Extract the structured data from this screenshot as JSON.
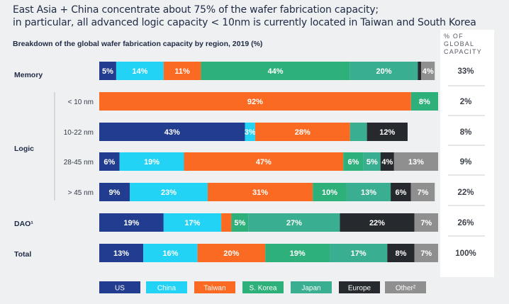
{
  "title": {
    "line1": "East Asia + China concentrate about 75% of the wafer fabrication capacity;",
    "line2": "in particular, all advanced logic capacity < 10nm is currently located in Taiwan and South Korea"
  },
  "subtitle": "Breakdown of the global wafer fabrication capacity by region, 2019 (%)",
  "share_header": "% OF\nGLOBAL\nCAPACITY",
  "colors": {
    "US": "#223d8f",
    "China": "#22d3f5",
    "Taiwan": "#fb6a22",
    "S. Korea": "#2eb07a",
    "Japan": "#3aae90",
    "Europe": "#262a2e",
    "Other²": "#8f8f8f"
  },
  "chart_data": {
    "type": "bar",
    "orientation": "horizontal",
    "stacked": true,
    "xlim": [
      0,
      100
    ],
    "series_names": [
      "US",
      "China",
      "Taiwan",
      "S. Korea",
      "Japan",
      "Europe",
      "Other²"
    ],
    "legend": [
      "US",
      "China",
      "Taiwan",
      "S. Korea",
      "Japan",
      "Europe",
      "Other²"
    ],
    "legend_position": "bottom",
    "rows": [
      {
        "group": "Memory",
        "label": "",
        "values": [
          5,
          14,
          11,
          44,
          20,
          1,
          4
        ],
        "labels": [
          "5%",
          "14%",
          "11%",
          "44%",
          "20%",
          "",
          "4%"
        ],
        "share": "33%"
      },
      {
        "group": "Logic",
        "label": "< 10 nm",
        "values": [
          0,
          0,
          92,
          8,
          0,
          0,
          0
        ],
        "labels": [
          "",
          "",
          "92%",
          "8%",
          "",
          "",
          ""
        ],
        "share": "2%"
      },
      {
        "group": "Logic",
        "label": "10-22 nm",
        "values": [
          43,
          3,
          28,
          0,
          5,
          12,
          0
        ],
        "labels": [
          "43%",
          "3%",
          "28%",
          "",
          "",
          "12%",
          ""
        ],
        "share": "8%"
      },
      {
        "group": "Logic",
        "label": "28-45 nm",
        "values": [
          6,
          19,
          47,
          6,
          5,
          4,
          13
        ],
        "labels": [
          "6%",
          "19%",
          "47%",
          "6%",
          "5%",
          "4%",
          "13%"
        ],
        "share": "9%"
      },
      {
        "group": "Logic",
        "label": "> 45 nm",
        "values": [
          9,
          23,
          31,
          10,
          13,
          6,
          7
        ],
        "labels": [
          "9%",
          "23%",
          "31%",
          "10%",
          "13%",
          "6%",
          "7%"
        ],
        "share": "22%"
      },
      {
        "group": "DAO¹",
        "label": "",
        "values": [
          19,
          17,
          3,
          5,
          27,
          22,
          7
        ],
        "labels": [
          "19%",
          "17%",
          "",
          "5%",
          "27%",
          "22%",
          "7%"
        ],
        "share": "26%"
      },
      {
        "group": "Total",
        "label": "",
        "values": [
          13,
          16,
          20,
          19,
          17,
          8,
          7
        ],
        "labels": [
          "13%",
          "16%",
          "20%",
          "19%",
          "17%",
          "8%",
          "7%"
        ],
        "share": "100%"
      }
    ]
  }
}
